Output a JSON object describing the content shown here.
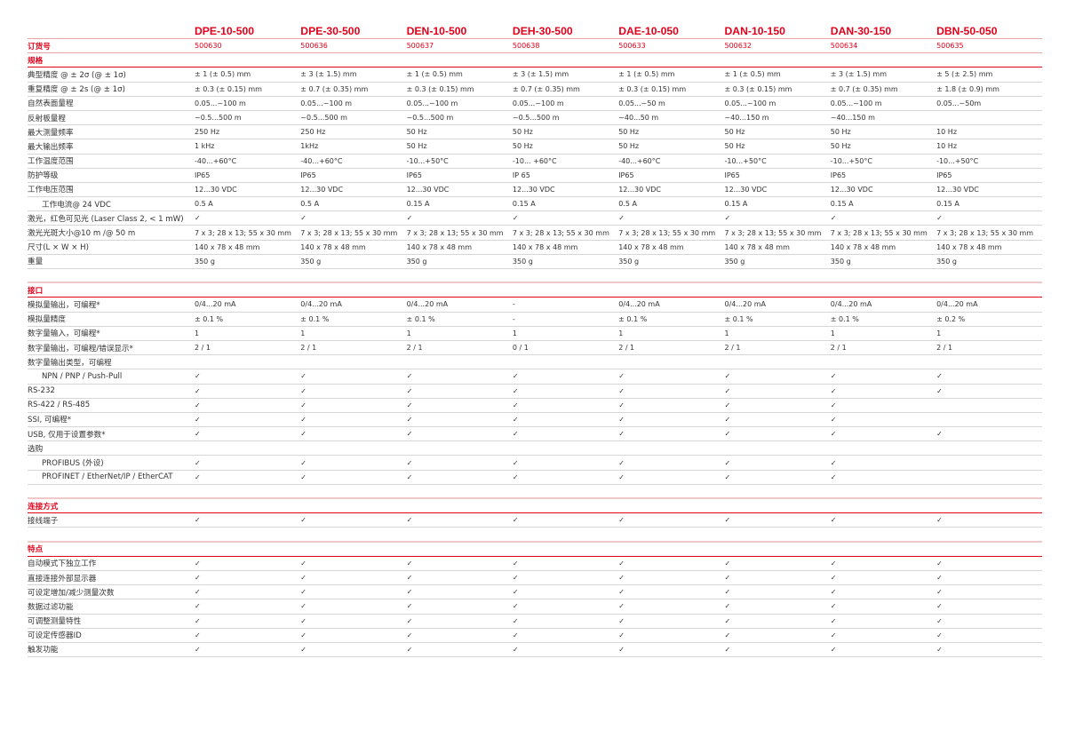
{
  "models": [
    "DPE-10-500",
    "DPE-30-500",
    "DEN-10-500",
    "DEH-30-500",
    "DAE-10-050",
    "DAN-10-150",
    "DAN-30-150",
    "DBN-50-050"
  ],
  "order": {
    "label": "订货号",
    "values": [
      "500630",
      "500636",
      "500637",
      "500638",
      "500633",
      "500632",
      "500634",
      "500635"
    ]
  },
  "colors": {
    "accent": "#e2001a"
  },
  "sections": [
    {
      "title": "规格",
      "rows": [
        {
          "label": "典型精度 @ ± 2σ (@ ± 1σ)",
          "values": [
            "± 1 (± 0.5) mm",
            "± 3 (± 1.5) mm",
            "± 1 (± 0.5) mm",
            "± 3 (± 1.5) mm",
            "± 1 (± 0.5) mm",
            "± 1 (± 0.5) mm",
            "± 3 (± 1.5) mm",
            "± 5 (± 2.5) mm"
          ]
        },
        {
          "label": "重复精度 @ ± 2s (@ ± 1σ)",
          "values": [
            "± 0.3 (± 0.15) mm",
            "± 0.7 (± 0.35) mm",
            "± 0.3 (± 0.15) mm",
            "± 0.7 (± 0.35) mm",
            "± 0.3 (± 0.15) mm",
            "± 0.3 (± 0.15) mm",
            "± 0.7 (± 0.35) mm",
            "± 1.8 (± 0.9) mm"
          ]
        },
        {
          "label": "自然表面量程",
          "values": [
            "0.05...~100 m",
            "0.05...~100 m",
            "0.05...~100 m",
            "0.05...~100 m",
            "0.05...~50 m",
            "0.05...~100 m",
            "0.05...~100 m",
            "0.05...~50m"
          ]
        },
        {
          "label": "反射板量程",
          "values": [
            " ~0.5...500 m",
            " ~0.5...500 m",
            " ~0.5...500 m",
            " ~0.5...500 m",
            "~40...50 m",
            "~40...150 m",
            "~40...150 m",
            ""
          ]
        },
        {
          "label": "最大测量频率",
          "values": [
            "250 Hz",
            "250 Hz",
            "50 Hz",
            "50 Hz",
            "50 Hz",
            "50 Hz",
            "50 Hz",
            "10 Hz"
          ]
        },
        {
          "label": "最大输出频率",
          "values": [
            "1 kHz",
            "1kHz",
            "50 Hz",
            "50 Hz",
            "50 Hz",
            "50 Hz",
            "50 Hz",
            "10 Hz"
          ]
        },
        {
          "label": "工作温度范围",
          "values": [
            "-40...+60°C",
            "-40...+60°C",
            "-10...+50°C",
            "-10... +60°C",
            "-40...+60°C",
            "-10...+50°C",
            "-10...+50°C",
            "-10...+50°C"
          ]
        },
        {
          "label": "防护等级",
          "values": [
            "IP65",
            "IP65",
            "IP65",
            "IP 65",
            "IP65",
            "IP65",
            "IP65",
            "IP65"
          ]
        },
        {
          "label": "工作电压范围",
          "values": [
            "12...30 VDC",
            "12...30 VDC",
            "12...30 VDC",
            "12...30 VDC",
            "12...30 VDC",
            "12...30 VDC",
            "12...30 VDC",
            "12...30 VDC"
          ]
        },
        {
          "label": "工作电流@ 24 VDC",
          "indent": true,
          "values": [
            "0.5 A",
            "0.5 A",
            "0.15 A",
            "0.15 A",
            "0.5 A",
            "0.15 A",
            "0.15 A",
            "0.15 A"
          ]
        },
        {
          "label": "激光，红色可见光 (Laser Class 2, < 1 mW)",
          "values": [
            "✓",
            "✓",
            "✓",
            "✓",
            "✓",
            "✓",
            "✓",
            "✓"
          ]
        },
        {
          "label": "激光光斑大小@10 m /@ 50 m",
          "values": [
            "7 x 3; 28 x 13; 55 x 30 mm",
            "7 x 3; 28 x 13; 55 x 30 mm",
            "7 x 3; 28 x 13; 55 x 30 mm",
            "7 x 3; 28 x 13; 55 x 30 mm",
            "7 x 3; 28 x 13; 55 x 30 mm",
            "7 x 3; 28 x 13; 55 x 30 mm",
            "7 x 3; 28 x 13; 55 x 30 mm",
            "7 x 3; 28 x 13; 55 x 30 mm"
          ]
        },
        {
          "label": "尺寸(L × W × H)",
          "values": [
            "140 x 78 x 48 mm",
            "140 x 78 x 48 mm",
            "140 x 78 x 48 mm",
            "140 x 78 x 48 mm",
            "140 x 78 x 48 mm",
            "140 x 78 x 48 mm",
            "140 x 78 x 48 mm",
            "140 x 78 x 48 mm"
          ]
        },
        {
          "label": "重量",
          "values": [
            "350 g",
            "350 g",
            "350 g",
            "350 g",
            "350 g",
            "350 g",
            "350 g",
            "350 g"
          ]
        }
      ]
    },
    {
      "title": "接口",
      "rows": [
        {
          "label": "模拟量输出，可编程*",
          "values": [
            "0/4...20 mA",
            "0/4...20 mA",
            "0/4...20 mA",
            "-",
            "0/4...20 mA",
            "0/4...20 mA",
            "0/4...20 mA",
            "0/4...20 mA"
          ]
        },
        {
          "label": "模拟量精度",
          "values": [
            "± 0.1 %",
            "± 0.1 %",
            "± 0.1 %",
            "-",
            "± 0.1 %",
            "± 0.1 %",
            "± 0.1 %",
            "± 0.2 %"
          ]
        },
        {
          "label": "数字量输入，可编程*",
          "values": [
            "1",
            "1",
            "1",
            "1",
            "1",
            "1",
            "1",
            "1"
          ]
        },
        {
          "label": "数字量输出，可编程/错误显示*",
          "values": [
            "2 / 1",
            "2 / 1",
            "2 / 1",
            "0 / 1",
            "2 / 1",
            "2 / 1",
            "2 / 1",
            "2 / 1"
          ]
        },
        {
          "label": "数字量输出类型，可编程",
          "values": [
            "",
            "",
            "",
            "",
            "",
            "",
            "",
            ""
          ]
        },
        {
          "label": "NPN / PNP / Push-Pull",
          "indent": true,
          "values": [
            "✓",
            "✓",
            "✓",
            "✓",
            "✓",
            "✓",
            "✓",
            "✓"
          ]
        },
        {
          "label": "RS-232",
          "values": [
            "✓",
            "✓",
            "✓",
            "✓",
            "✓",
            "✓",
            "✓",
            "✓"
          ]
        },
        {
          "label": "RS-422 / RS-485",
          "values": [
            "✓",
            "✓",
            "✓",
            "✓",
            "✓",
            "✓",
            "✓",
            ""
          ]
        },
        {
          "label": "SSI, 可编程*",
          "values": [
            "✓",
            "✓",
            "✓",
            "✓",
            "✓",
            "✓",
            "✓",
            ""
          ]
        },
        {
          "label": "USB, 仅用于设置参数*",
          "values": [
            "✓",
            "✓",
            "✓",
            "✓",
            "✓",
            "✓",
            "✓",
            "✓"
          ]
        },
        {
          "label": "选购",
          "values": [
            "",
            "",
            "",
            "",
            "",
            "",
            "",
            ""
          ]
        },
        {
          "label": "PROFIBUS (外设)",
          "indent": true,
          "values": [
            "✓",
            "✓",
            "✓",
            "✓",
            "✓",
            "✓",
            "✓",
            ""
          ]
        },
        {
          "label": "PROFINET / EtherNet/IP / EtherCAT",
          "indent": true,
          "values": [
            "✓",
            "✓",
            "✓",
            "✓",
            "✓",
            "✓",
            "✓",
            ""
          ]
        }
      ]
    },
    {
      "title": "连接方式",
      "rows": [
        {
          "label": "接线端子",
          "values": [
            "✓",
            "✓",
            "✓",
            "✓",
            "✓",
            "✓",
            "✓",
            "✓"
          ]
        }
      ]
    },
    {
      "title": "特点",
      "rows": [
        {
          "label": "自动模式下独立工作",
          "values": [
            "✓",
            "✓",
            "✓",
            "✓",
            "✓",
            "✓",
            "✓",
            "✓"
          ]
        },
        {
          "label": "直接连接外部显示器",
          "values": [
            "✓",
            "✓",
            "✓",
            "✓",
            "✓",
            "✓",
            "✓",
            "✓"
          ]
        },
        {
          "label": "可设定增加/减少测量次数",
          "values": [
            "✓",
            "✓",
            "✓",
            "✓",
            "✓",
            "✓",
            "✓",
            "✓"
          ]
        },
        {
          "label": "数据过滤功能",
          "values": [
            "✓",
            "✓",
            "✓",
            "✓",
            "✓",
            "✓",
            "✓",
            "✓"
          ]
        },
        {
          "label": "可调整测量特性",
          "values": [
            "✓",
            "✓",
            "✓",
            "✓",
            "✓",
            "✓",
            "✓",
            "✓"
          ]
        },
        {
          "label": "可设定传感器ID",
          "values": [
            "✓",
            "✓",
            "✓",
            "✓",
            "✓",
            "✓",
            "✓",
            "✓"
          ]
        },
        {
          "label": "触发功能",
          "values": [
            "✓",
            "✓",
            "✓",
            "✓",
            "✓",
            "✓",
            "✓",
            "✓"
          ]
        }
      ]
    }
  ]
}
